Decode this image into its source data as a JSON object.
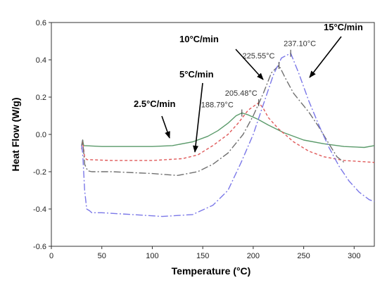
{
  "chart_data": {
    "type": "line",
    "xlabel": "Temperature (°C)",
    "ylabel": "Heat Flow (W/g)",
    "xlim": [
      0,
      320
    ],
    "ylim": [
      -0.6,
      0.6
    ],
    "x_ticks": [
      0,
      50,
      100,
      150,
      200,
      250,
      300
    ],
    "y_ticks": [
      -0.6,
      -0.4,
      -0.2,
      0.0,
      0.2,
      0.4,
      0.6
    ],
    "x_tick_labels": [
      "0",
      "50",
      "100",
      "150",
      "200",
      "250",
      "300"
    ],
    "y_tick_labels": [
      "-0.6",
      "-0.4",
      "-0.2",
      "0.0",
      "0.2",
      "0.4",
      "0.6"
    ],
    "grid": false,
    "series": [
      {
        "name": "2.5°C/min",
        "color": "#5a9a6a",
        "dash": "solid",
        "points": [
          [
            30,
            -0.06
          ],
          [
            31,
            -0.03
          ],
          [
            32,
            -0.06
          ],
          [
            50,
            -0.065
          ],
          [
            100,
            -0.065
          ],
          [
            120,
            -0.06
          ],
          [
            140,
            -0.04
          ],
          [
            155,
            -0.01
          ],
          [
            165,
            0.02
          ],
          [
            175,
            0.06
          ],
          [
            183,
            0.1
          ],
          [
            188.79,
            0.115
          ],
          [
            195,
            0.105
          ],
          [
            205,
            0.08
          ],
          [
            215,
            0.05
          ],
          [
            230,
            0.01
          ],
          [
            250,
            -0.03
          ],
          [
            270,
            -0.05
          ],
          [
            290,
            -0.065
          ],
          [
            310,
            -0.07
          ],
          [
            320,
            -0.06
          ]
        ]
      },
      {
        "name": "5°C/min",
        "color": "#e05a5a",
        "dash": "4,3",
        "points": [
          [
            30,
            -0.08
          ],
          [
            31,
            -0.04
          ],
          [
            33,
            -0.12
          ],
          [
            35,
            -0.135
          ],
          [
            60,
            -0.14
          ],
          [
            100,
            -0.14
          ],
          [
            130,
            -0.13
          ],
          [
            145,
            -0.11
          ],
          [
            160,
            -0.06
          ],
          [
            175,
            0.0
          ],
          [
            185,
            0.06
          ],
          [
            195,
            0.13
          ],
          [
            205.48,
            0.17
          ],
          [
            210,
            0.14
          ],
          [
            215,
            0.09
          ],
          [
            225,
            0.03
          ],
          [
            240,
            -0.04
          ],
          [
            255,
            -0.09
          ],
          [
            270,
            -0.12
          ],
          [
            290,
            -0.14
          ],
          [
            305,
            -0.145
          ],
          [
            320,
            -0.15
          ]
        ]
      },
      {
        "name": "10°C/min",
        "color": "#707070",
        "dash": "10,3,2,3",
        "points": [
          [
            30,
            -0.06
          ],
          [
            31,
            -0.03
          ],
          [
            33,
            -0.16
          ],
          [
            36,
            -0.195
          ],
          [
            40,
            -0.2
          ],
          [
            60,
            -0.2
          ],
          [
            100,
            -0.21
          ],
          [
            125,
            -0.22
          ],
          [
            145,
            -0.2
          ],
          [
            160,
            -0.16
          ],
          [
            175,
            -0.1
          ],
          [
            190,
            0.0
          ],
          [
            200,
            0.1
          ],
          [
            210,
            0.22
          ],
          [
            218,
            0.33
          ],
          [
            225.55,
            0.37
          ],
          [
            232,
            0.3
          ],
          [
            240,
            0.22
          ],
          [
            255,
            0.12
          ],
          [
            265,
            0.04
          ],
          [
            275,
            -0.05
          ],
          [
            283,
            -0.12
          ],
          [
            290,
            -0.15
          ]
        ]
      },
      {
        "name": "15°C/min",
        "color": "#7b78e8",
        "dash": "10,3,2,3",
        "points": [
          [
            30,
            -0.06
          ],
          [
            31,
            -0.1
          ],
          [
            33,
            -0.3
          ],
          [
            35,
            -0.4
          ],
          [
            38,
            -0.41
          ],
          [
            40,
            -0.42
          ],
          [
            50,
            -0.42
          ],
          [
            80,
            -0.43
          ],
          [
            110,
            -0.44
          ],
          [
            140,
            -0.43
          ],
          [
            160,
            -0.38
          ],
          [
            175,
            -0.3
          ],
          [
            188,
            -0.15
          ],
          [
            200,
            0.0
          ],
          [
            210,
            0.16
          ],
          [
            220,
            0.32
          ],
          [
            228,
            0.41
          ],
          [
            237.1,
            0.435
          ],
          [
            245,
            0.33
          ],
          [
            255,
            0.18
          ],
          [
            265,
            0.05
          ],
          [
            275,
            -0.07
          ],
          [
            285,
            -0.17
          ],
          [
            295,
            -0.25
          ],
          [
            305,
            -0.31
          ],
          [
            315,
            -0.35
          ],
          [
            320,
            -0.36
          ]
        ]
      }
    ],
    "peak_labels": [
      {
        "text": "188.79°C",
        "x": 188.79,
        "y": 0.115,
        "series": 0
      },
      {
        "text": "205.48°C",
        "x": 205.48,
        "y": 0.17,
        "series": 1
      },
      {
        "text": "225.55°C",
        "x": 225.55,
        "y": 0.37,
        "series": 2
      },
      {
        "text": "237.10°C",
        "x": 237.1,
        "y": 0.435,
        "series": 3
      }
    ],
    "rate_labels": [
      {
        "text": "2.5°C/min",
        "series": 0
      },
      {
        "text": "5°C/min",
        "series": 1
      },
      {
        "text": "10°C/min",
        "series": 2
      },
      {
        "text": "15°C/min",
        "series": 3
      }
    ]
  }
}
